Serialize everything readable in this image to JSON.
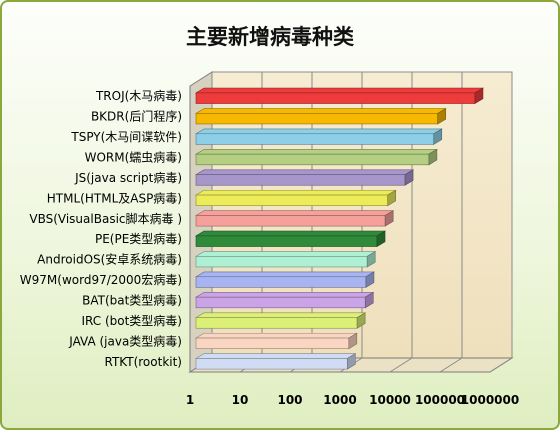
{
  "chart_data": {
    "type": "bar",
    "orientation": "horizontal",
    "title": "主要新增病毒种类",
    "xscale": "log",
    "xlim": [
      1,
      1000000
    ],
    "xticks": [
      "1",
      "10",
      "100",
      "1000",
      "10000",
      "100000",
      "1000000"
    ],
    "grid": true,
    "legend": "none",
    "categories": [
      "TROJ(木马病毒)",
      "BKDR(后门程序)",
      "TSPY(木马间谍软件)",
      "WORM(蠕虫病毒)",
      "JS(java script病毒)",
      "HTML(HTML及ASP病毒)",
      "VBS(VisualBasic脚本病毒 )",
      "PE(PE类型病毒)",
      "AndroidOS(安卓系统病毒)",
      "W97M(word97/2000宏病毒)",
      "BAT(bat类型病毒)",
      "IRC (bot类型病毒)",
      "JAVA (java类型病毒)",
      "RTKT(rootkit)"
    ],
    "values": [
      500000,
      90000,
      75000,
      60000,
      20000,
      9000,
      8000,
      5500,
      3500,
      3300,
      3200,
      2200,
      1500,
      1400
    ],
    "colors": [
      "#ee3b3b",
      "#f6b800",
      "#8ccfe6",
      "#b4cf82",
      "#a796cc",
      "#ecec5a",
      "#f5a09a",
      "#2f8a3a",
      "#aef0d4",
      "#a8b4f2",
      "#caa4e6",
      "#dcf078",
      "#fad6c2",
      "#d0dcf4"
    ]
  }
}
